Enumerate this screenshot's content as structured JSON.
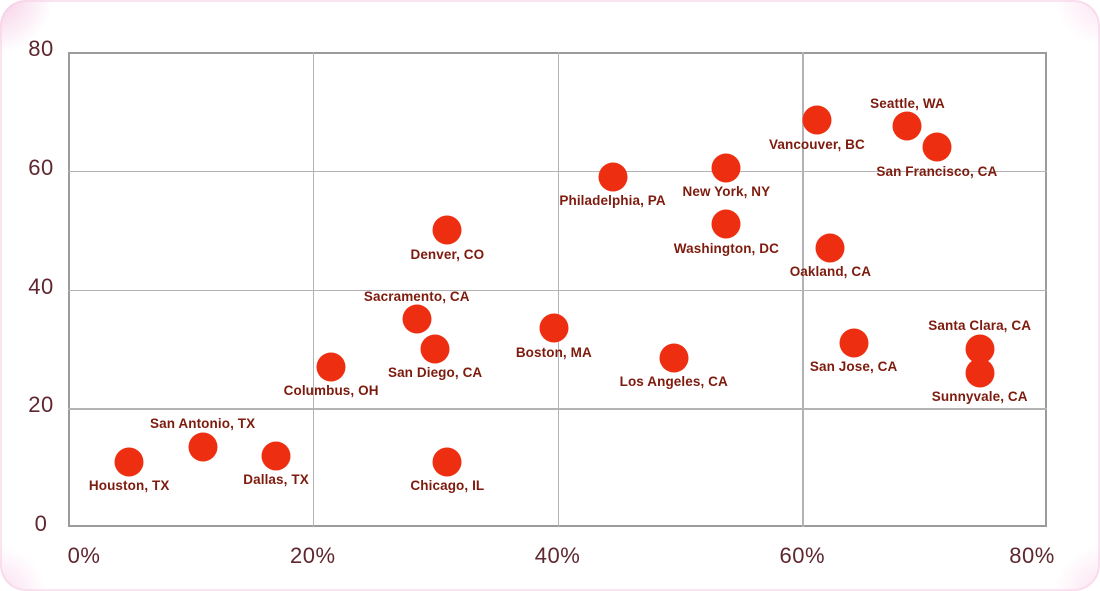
{
  "chart_data": {
    "type": "scatter",
    "title": "",
    "xlabel": "",
    "ylabel": "",
    "xlim": [
      0,
      80
    ],
    "ylim": [
      0,
      80
    ],
    "grid": true,
    "x_ticks": [
      "0%",
      "20%",
      "40%",
      "60%",
      "80%"
    ],
    "x_tick_values": [
      0,
      20,
      40,
      60,
      80
    ],
    "y_ticks": [
      "0",
      "20",
      "40",
      "60",
      "80"
    ],
    "y_tick_values": [
      0,
      20,
      40,
      60,
      80
    ],
    "points": [
      {
        "label": "Houston, TX",
        "x": 5,
        "y": 11,
        "label_position": "below"
      },
      {
        "label": "San Antonio, TX",
        "x": 11,
        "y": 13.5,
        "label_position": "above"
      },
      {
        "label": "Dallas, TX",
        "x": 17,
        "y": 12,
        "label_position": "below"
      },
      {
        "label": "Columbus, OH",
        "x": 21.5,
        "y": 27,
        "label_position": "below"
      },
      {
        "label": "Sacramento, CA",
        "x": 28.5,
        "y": 35,
        "label_position": "above"
      },
      {
        "label": "San Diego, CA",
        "x": 30,
        "y": 30,
        "label_position": "below"
      },
      {
        "label": "Chicago, IL",
        "x": 31,
        "y": 11,
        "label_position": "below"
      },
      {
        "label": "Denver, CO",
        "x": 31,
        "y": 50,
        "label_position": "below"
      },
      {
        "label": "Boston, MA",
        "x": 39.7,
        "y": 33.5,
        "label_position": "below"
      },
      {
        "label": "Philadelphia, PA",
        "x": 44.5,
        "y": 59,
        "label_position": "below"
      },
      {
        "label": "Los Angeles, CA",
        "x": 49.5,
        "y": 28.5,
        "label_position": "below"
      },
      {
        "label": "New York, NY",
        "x": 53.8,
        "y": 60.5,
        "label_position": "below"
      },
      {
        "label": "Washington, DC",
        "x": 53.8,
        "y": 51,
        "label_position": "below"
      },
      {
        "label": "Vancouver, BC",
        "x": 61.2,
        "y": 68.5,
        "label_position": "below"
      },
      {
        "label": "Oakland, CA",
        "x": 62.3,
        "y": 47,
        "label_position": "below"
      },
      {
        "label": "San Jose, CA",
        "x": 64.2,
        "y": 31,
        "label_position": "below"
      },
      {
        "label": "Seattle, WA",
        "x": 68.6,
        "y": 67.5,
        "label_position": "above"
      },
      {
        "label": "San Francisco, CA",
        "x": 71,
        "y": 64,
        "label_position": "below"
      },
      {
        "label": "Santa Clara, CA",
        "x": 74.5,
        "y": 30,
        "label_position": "above"
      },
      {
        "label": "Sunnyvale, CA",
        "x": 74.5,
        "y": 26,
        "label_position": "below"
      }
    ],
    "colors": {
      "dot": "#ee2e10",
      "point_label": "#7d1b0e",
      "axis_label": "#5f2730",
      "gridline": "#b3b3b3",
      "plot_border": "#9b9b9b"
    }
  }
}
